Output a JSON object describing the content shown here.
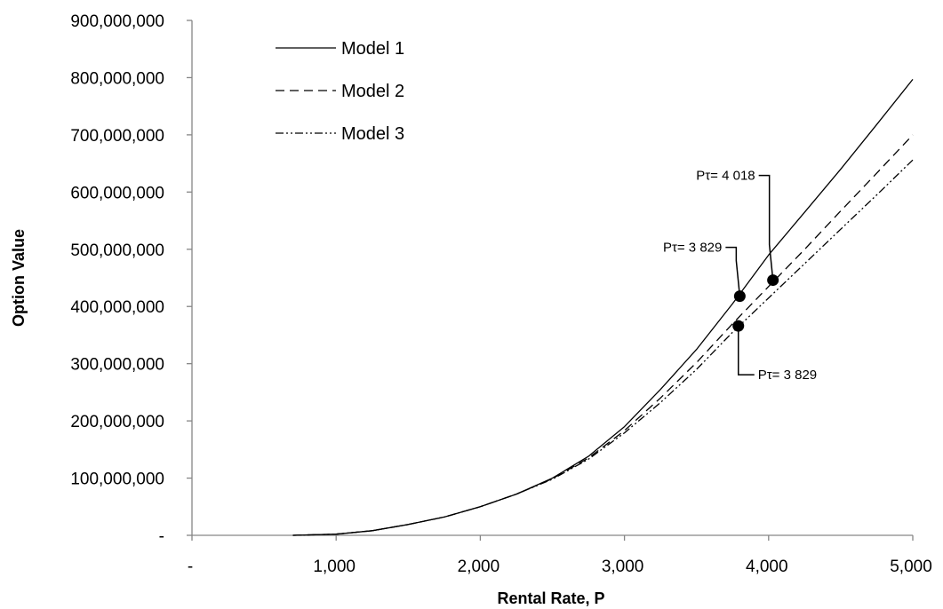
{
  "chart_data": {
    "type": "line",
    "xlabel": "Rental Rate, P",
    "ylabel": "Option Value",
    "xlim": [
      0,
      5000
    ],
    "ylim": [
      0,
      900000000
    ],
    "x_ticks": [
      0,
      1000,
      2000,
      3000,
      4000,
      5000
    ],
    "x_tick_labels": [
      "-",
      "1,000",
      "2,000",
      "3,000",
      "4,000",
      "5,000"
    ],
    "y_ticks": [
      0,
      100000000,
      200000000,
      300000000,
      400000000,
      500000000,
      600000000,
      700000000,
      800000000,
      900000000
    ],
    "y_tick_labels": [
      "-",
      "100,000,000",
      "200,000,000",
      "300,000,000",
      "400,000,000",
      "500,000,000",
      "600,000,000",
      "700,000,000",
      "800,000,000",
      "900,000,000"
    ],
    "grid": false,
    "legend_position": "top-left",
    "series": [
      {
        "name": "Model 1",
        "style": "solid",
        "x": [
          700,
          1000,
          1250,
          1500,
          1750,
          2000,
          2250,
          2500,
          2750,
          3000,
          3250,
          3500,
          3750,
          4000,
          4250,
          4500,
          4750,
          5000
        ],
        "y": [
          0,
          2000000,
          8000000,
          19000000,
          32000000,
          50000000,
          72000000,
          100000000,
          138000000,
          190000000,
          255000000,
          325000000,
          405000000,
          490000000,
          565000000,
          640000000,
          718000000,
          797000000
        ]
      },
      {
        "name": "Model 2",
        "style": "dashed",
        "x": [
          700,
          1000,
          1250,
          1500,
          1750,
          2000,
          2250,
          2500,
          2750,
          3000,
          3250,
          3500,
          3750,
          4000,
          4250,
          4500,
          4750,
          5000
        ],
        "y": [
          0,
          2000000,
          8000000,
          19000000,
          32000000,
          50000000,
          72000000,
          99000000,
          135000000,
          183000000,
          240000000,
          302000000,
          370000000,
          435000000,
          500000000,
          567000000,
          633000000,
          700000000
        ]
      },
      {
        "name": "Model 3",
        "style": "dash-dot-dot",
        "x": [
          700,
          1000,
          1250,
          1500,
          1750,
          2000,
          2250,
          2500,
          2750,
          3000,
          3250,
          3500,
          3750,
          4000,
          4250,
          4500,
          4750,
          5000
        ],
        "y": [
          0,
          2000000,
          8000000,
          19000000,
          32000000,
          50000000,
          72000000,
          98000000,
          133000000,
          179000000,
          232000000,
          290000000,
          355000000,
          415000000,
          475000000,
          535000000,
          595000000,
          656000000
        ]
      }
    ],
    "annotations": [
      {
        "text": "Pτ= 3 829",
        "x": 3800,
        "y": 418000000,
        "label_side": "upper-left"
      },
      {
        "text": "Pτ= 4 018",
        "x": 4030,
        "y": 446000000,
        "label_side": "upper-left"
      },
      {
        "text": "Pτ= 3 829",
        "x": 3790,
        "y": 366000000,
        "label_side": "lower-right"
      }
    ]
  }
}
